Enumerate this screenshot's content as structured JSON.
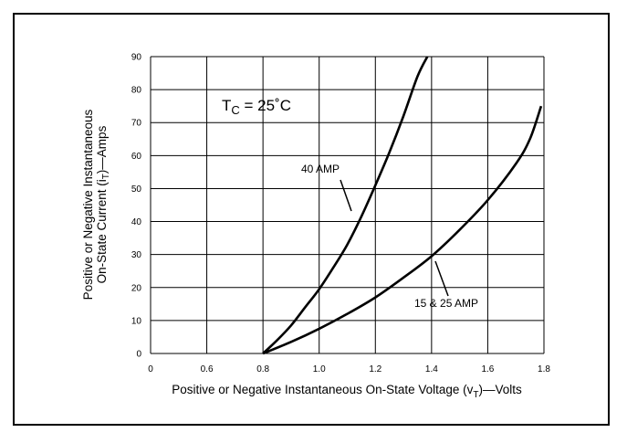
{
  "chart_data": {
    "type": "line",
    "xlabel": {
      "before": "Positive or Negative Instantaneous On-State Voltage (v",
      "sub": "T",
      "after": ")—Volts"
    },
    "ylabel": {
      "line1": "Positive or Negative Instantaneous",
      "line2_before": "On-State Current (i",
      "line2_sub": "T",
      "line2_after": ")—Amps"
    },
    "x_ticks": [
      "0",
      "0.6",
      "0.8",
      "1.0",
      "1.2",
      "1.4",
      "1.6",
      "1.8"
    ],
    "x_tick_values": [
      0.4,
      0.6,
      0.8,
      1.0,
      1.2,
      1.4,
      1.6,
      1.8
    ],
    "y_ticks": [
      "0",
      "10",
      "20",
      "30",
      "40",
      "50",
      "60",
      "70",
      "80",
      "90"
    ],
    "y_tick_values": [
      0,
      10,
      20,
      30,
      40,
      50,
      60,
      70,
      80,
      90
    ],
    "xlim": [
      0.4,
      1.8
    ],
    "ylim": [
      0,
      90
    ],
    "grid": true,
    "condition": {
      "prefix": "T",
      "sub": "C",
      "suffix": " = 25˚C"
    },
    "series": [
      {
        "name": "40 AMP",
        "x": [
          0.8,
          0.85,
          0.9,
          0.95,
          1.0,
          1.05,
          1.1,
          1.15,
          1.2,
          1.25,
          1.3,
          1.35,
          1.385
        ],
        "y": [
          0,
          4,
          8.5,
          14,
          19.5,
          26,
          33,
          41.5,
          51,
          61,
          72,
          84,
          90
        ]
      },
      {
        "name": "15 & 25 AMP",
        "x": [
          0.8,
          0.9,
          1.0,
          1.1,
          1.2,
          1.3,
          1.4,
          1.5,
          1.6,
          1.7,
          1.75,
          1.79
        ],
        "y": [
          0,
          3.5,
          7.5,
          12,
          17,
          23,
          29.5,
          37.5,
          46.5,
          57.5,
          65,
          75
        ]
      }
    ]
  }
}
